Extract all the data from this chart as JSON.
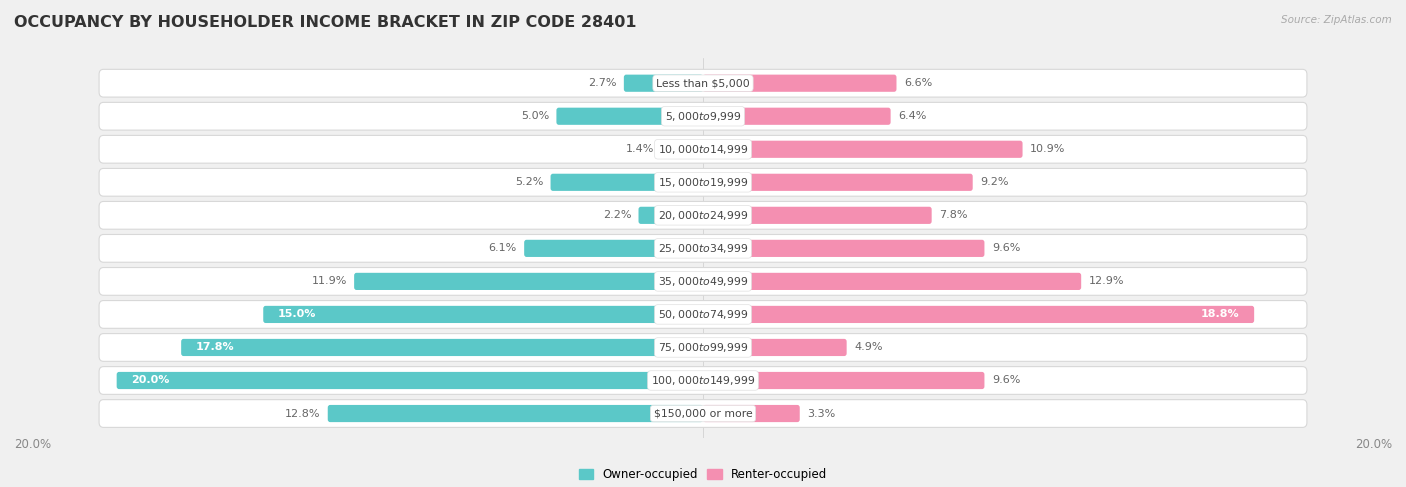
{
  "title": "OCCUPANCY BY HOUSEHOLDER INCOME BRACKET IN ZIP CODE 28401",
  "source": "Source: ZipAtlas.com",
  "categories": [
    "Less than $5,000",
    "$5,000 to $9,999",
    "$10,000 to $14,999",
    "$15,000 to $19,999",
    "$20,000 to $24,999",
    "$25,000 to $34,999",
    "$35,000 to $49,999",
    "$50,000 to $74,999",
    "$75,000 to $99,999",
    "$100,000 to $149,999",
    "$150,000 or more"
  ],
  "owner_values": [
    2.7,
    5.0,
    1.4,
    5.2,
    2.2,
    6.1,
    11.9,
    15.0,
    17.8,
    20.0,
    12.8
  ],
  "renter_values": [
    6.6,
    6.4,
    10.9,
    9.2,
    7.8,
    9.6,
    12.9,
    18.8,
    4.9,
    9.6,
    3.3
  ],
  "owner_color": "#5bc8c8",
  "renter_color": "#f48fb1",
  "bar_height": 0.52,
  "background_color": "#f0f0f0",
  "row_bg_color": "#ffffff",
  "row_border_color": "#d8d8d8",
  "axis_max": 20.0,
  "title_fontsize": 11.5,
  "label_fontsize": 8.0,
  "tick_fontsize": 8.5,
  "legend_fontsize": 8.5,
  "category_fontsize": 7.8
}
